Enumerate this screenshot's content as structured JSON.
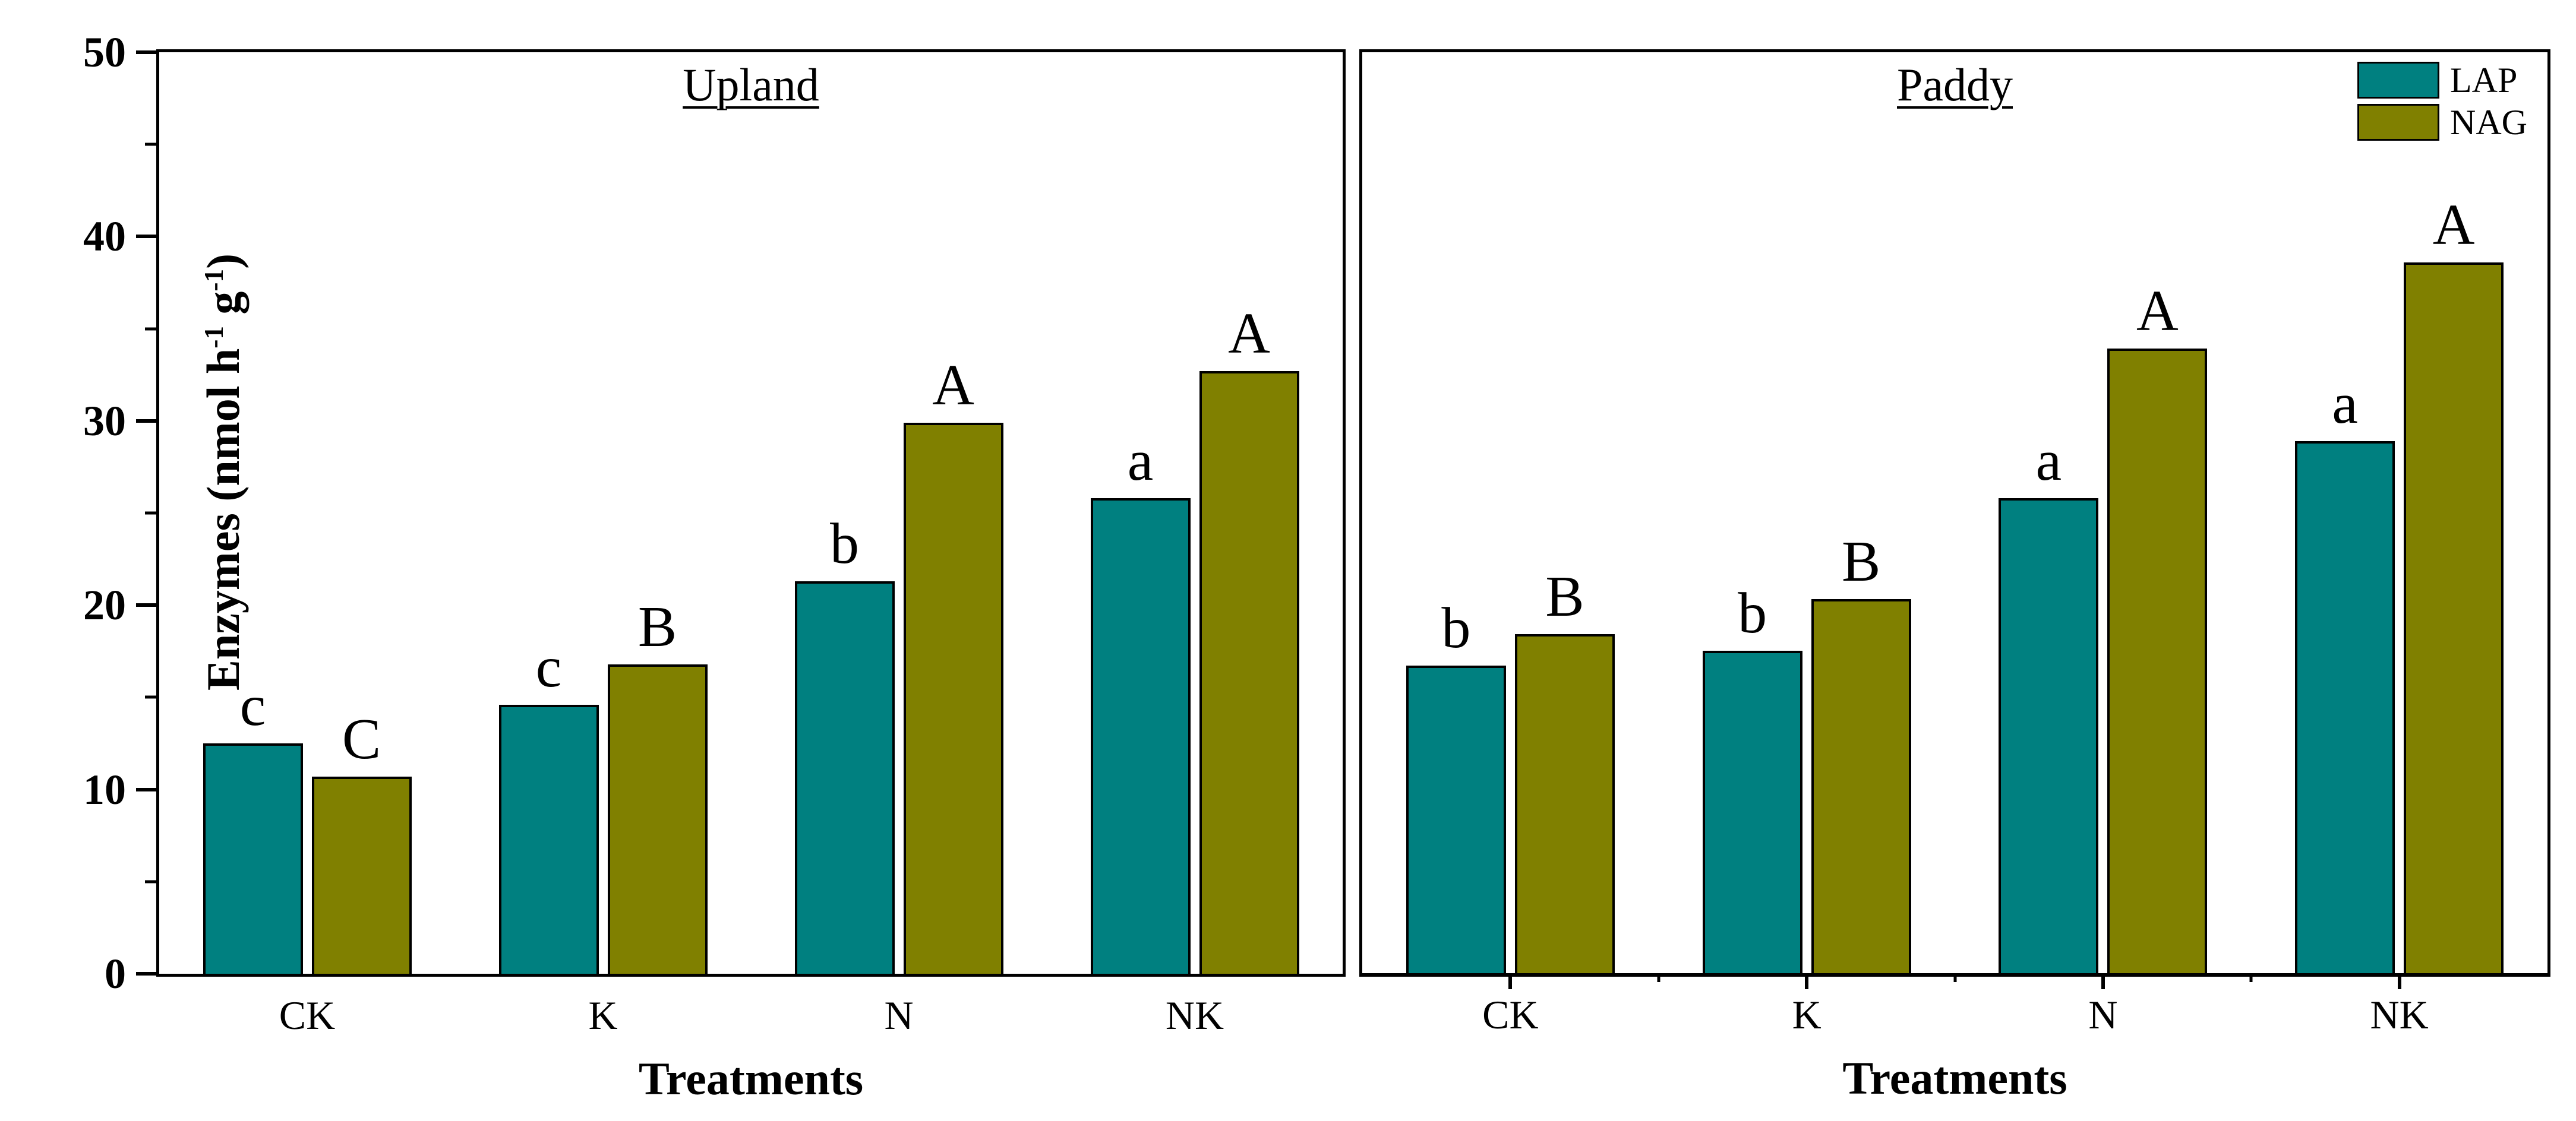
{
  "chart_data": {
    "type": "bar",
    "xlabel": "Treatments",
    "ylabel_parts": {
      "pre": "Enzymes (nmol h",
      "sup1": "-1",
      "mid": " g",
      "sup2": "-1",
      "post": ")"
    },
    "ylim": [
      0,
      50
    ],
    "yticks_major": [
      0,
      10,
      20,
      30,
      40,
      50
    ],
    "yticks_minor": [
      5,
      15,
      25,
      35,
      45
    ],
    "categories": [
      "CK",
      "K",
      "N",
      "NK"
    ],
    "legend": [
      {
        "name": "LAP",
        "color": "#008080"
      },
      {
        "name": "NAG",
        "color": "#808000"
      }
    ],
    "grid": false,
    "legend_position": "top-right-inside-paddy-panel",
    "panels": [
      {
        "title": "Upland",
        "series": [
          {
            "name": "LAP",
            "values": [
              12.5,
              14.6,
              21.3,
              25.8
            ],
            "letters": [
              "c",
              "c",
              "b",
              "a"
            ]
          },
          {
            "name": "NAG",
            "values": [
              10.7,
              16.8,
              29.9,
              32.7
            ],
            "letters": [
              "C",
              "B",
              "A",
              "A"
            ]
          }
        ]
      },
      {
        "title": "Paddy",
        "series": [
          {
            "name": "LAP",
            "values": [
              16.7,
              17.5,
              25.8,
              28.9
            ],
            "letters": [
              "b",
              "b",
              "a",
              "a"
            ]
          },
          {
            "name": "NAG",
            "values": [
              18.4,
              20.3,
              33.9,
              38.6
            ],
            "letters": [
              "B",
              "B",
              "A",
              "A"
            ]
          }
        ]
      }
    ]
  },
  "colors": {
    "axis": "#000000",
    "background": "#ffffff",
    "lap": "#008080",
    "nag": "#808000"
  }
}
